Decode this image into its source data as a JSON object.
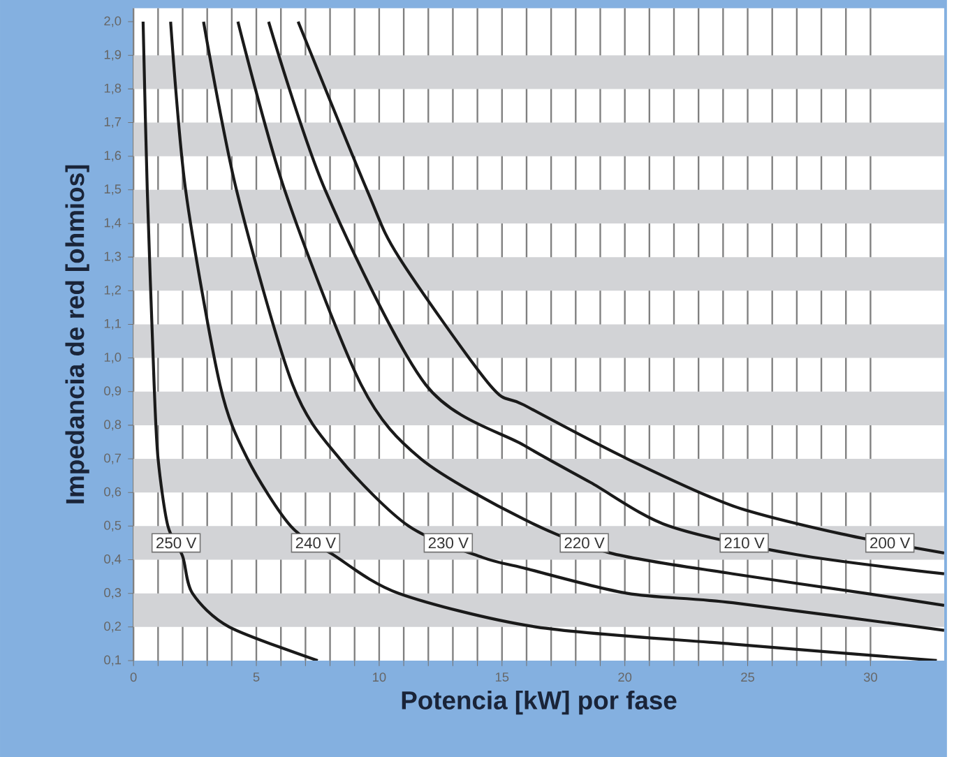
{
  "chart_data": {
    "type": "line",
    "xlabel": "Potencia [kW] por fase",
    "ylabel": "Impedancia de red [ohmios]",
    "xlim": [
      0,
      33
    ],
    "ylim": [
      0.1,
      2.04
    ],
    "xticks": [
      0,
      5,
      10,
      15,
      20,
      25,
      30
    ],
    "yticks": [
      {
        "value": 0.1,
        "label": "0,1"
      },
      {
        "value": 0.2,
        "label": "0,2"
      },
      {
        "value": 0.3,
        "label": "0,3"
      },
      {
        "value": 0.4,
        "label": "0,4"
      },
      {
        "value": 0.5,
        "label": "0,5"
      },
      {
        "value": 0.6,
        "label": "0,6"
      },
      {
        "value": 0.7,
        "label": "0,7"
      },
      {
        "value": 0.8,
        "label": "0,8"
      },
      {
        "value": 0.9,
        "label": "0,9"
      },
      {
        "value": 1.0,
        "label": "1,0"
      },
      {
        "value": 1.1,
        "label": "1,1"
      },
      {
        "value": 1.2,
        "label": "1,2"
      },
      {
        "value": 1.3,
        "label": "1,3"
      },
      {
        "value": 1.4,
        "label": "1,4"
      },
      {
        "value": 1.5,
        "label": "1,5"
      },
      {
        "value": 1.6,
        "label": "1,6"
      },
      {
        "value": 1.7,
        "label": "1,7"
      },
      {
        "value": 1.8,
        "label": "1,8"
      },
      {
        "value": 1.9,
        "label": "1,9"
      },
      {
        "value": 2.0,
        "label": "2,0"
      }
    ],
    "grid": true,
    "series": [
      {
        "name": "250 V",
        "color": "#1a1a1a",
        "x": [
          0.39,
          0.56,
          0.84,
          1.0,
          1.4,
          2.0,
          2.4,
          3.9,
          7.5
        ],
        "values": [
          2.0,
          1.5,
          0.92,
          0.7,
          0.5,
          0.41,
          0.3,
          0.2,
          0.1
        ]
      },
      {
        "name": "240 V",
        "color": "#1a1a1a",
        "x": [
          1.51,
          2.12,
          3.52,
          4.64,
          6.4,
          8.1,
          10.8,
          16.4,
          24.4,
          32.7
        ],
        "values": [
          2.0,
          1.5,
          0.92,
          0.7,
          0.5,
          0.416,
          0.3,
          0.2,
          0.149,
          0.1
        ]
      },
      {
        "name": "230 V",
        "color": "#1a1a1a",
        "x": [
          2.85,
          4.19,
          6.48,
          8.4,
          11.2,
          14.2,
          15.9,
          20.1,
          24.4,
          33
        ],
        "values": [
          2.0,
          1.5,
          0.92,
          0.7,
          0.5,
          0.407,
          0.375,
          0.3,
          0.272,
          0.19
        ]
      },
      {
        "name": "220 V",
        "color": "#1a1a1a",
        "x": [
          4.25,
          6.15,
          9.27,
          11.7,
          15.9,
          19.4,
          24.4,
          29.8,
          33
        ],
        "values": [
          2.0,
          1.5,
          0.92,
          0.7,
          0.52,
          0.42,
          0.358,
          0.3,
          0.264
        ]
      },
      {
        "name": "210 V",
        "color": "#1a1a1a",
        "x": [
          5.5,
          7.8,
          11.9,
          15.9,
          18.6,
          21.8,
          27.0,
          33
        ],
        "values": [
          2.0,
          1.5,
          0.92,
          0.74,
          0.63,
          0.5,
          0.415,
          0.358
        ]
      },
      {
        "name": "200 V",
        "color": "#1a1a1a",
        "x": [
          6.7,
          9.5,
          10.8,
          14.5,
          15.9,
          20.1,
          24.4,
          28.8,
          33
        ],
        "values": [
          2.0,
          1.5,
          1.3,
          0.92,
          0.86,
          0.7,
          0.56,
          0.477,
          0.42
        ]
      }
    ]
  }
}
